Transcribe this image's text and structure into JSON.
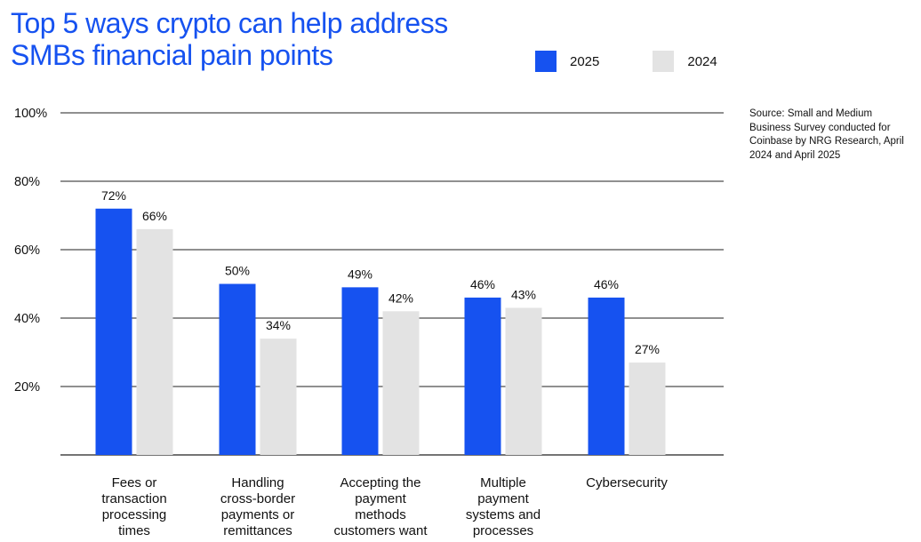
{
  "title_lines": [
    "Top 5 ways crypto can help address",
    "SMBs financial pain points"
  ],
  "source": "Source: Small and Medium Business Survey conducted for Coinbase by NRG Research, April 2024 and April 2025",
  "colors": {
    "title": "#1652f0",
    "series_2025": "#1652f0",
    "series_2024": "#e3e3e3",
    "gridline": "#222222"
  },
  "chart_data": {
    "type": "bar",
    "title": "Top 5 ways crypto can help address SMBs financial pain points",
    "xlabel": "",
    "ylabel": "",
    "ylim": [
      0,
      100
    ],
    "y_ticks": [
      "20%",
      "40%",
      "60%",
      "80%",
      "100%"
    ],
    "y_tick_values": [
      20,
      40,
      60,
      80,
      100
    ],
    "grid": true,
    "legend_position": "top-right",
    "categories": [
      [
        "Fees or",
        "transaction",
        "processing",
        "times"
      ],
      [
        "Handling",
        "cross-border",
        "payments or",
        "remittances"
      ],
      [
        "Accepting the",
        "payment",
        "methods",
        "customers want"
      ],
      [
        "Multiple",
        "payment",
        "systems and",
        "processes"
      ],
      [
        "Cybersecurity"
      ]
    ],
    "series": [
      {
        "name": "2025",
        "color": "#1652f0",
        "values": [
          72,
          50,
          49,
          46,
          46
        ],
        "labels": [
          "72%",
          "50%",
          "49%",
          "46%",
          "46%"
        ]
      },
      {
        "name": "2024",
        "color": "#e3e3e3",
        "values": [
          66,
          34,
          42,
          43,
          27
        ],
        "labels": [
          "66%",
          "34%",
          "42%",
          "43%",
          "27%"
        ]
      }
    ]
  }
}
